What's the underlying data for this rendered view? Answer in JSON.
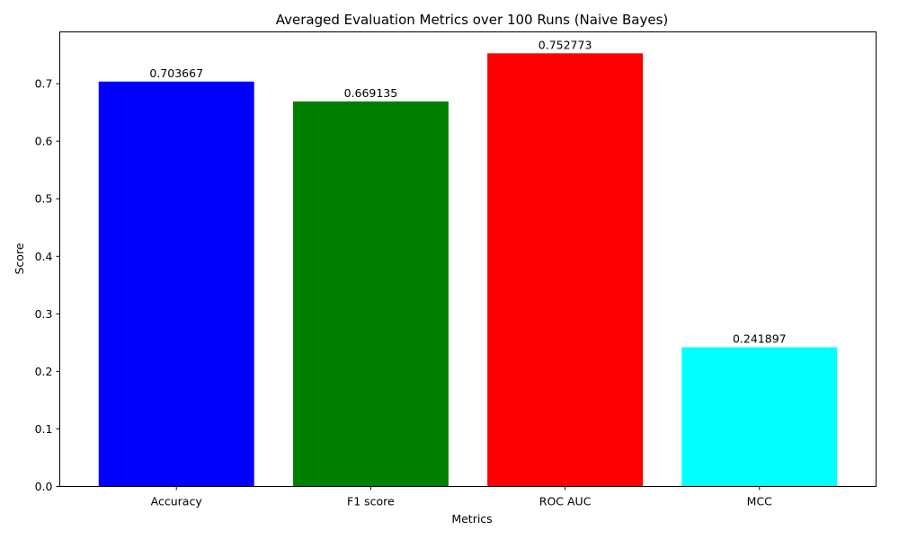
{
  "chart_data": {
    "type": "bar",
    "title": "Averaged Evaluation Metrics over 100 Runs (Naive Bayes)",
    "xlabel": "Metrics",
    "ylabel": "Score",
    "categories": [
      "Accuracy",
      "F1 score",
      "ROC AUC",
      "MCC"
    ],
    "values": [
      0.703667,
      0.669135,
      0.752773,
      0.241897
    ],
    "value_labels": [
      "0.703667",
      "0.669135",
      "0.752773",
      "0.241897"
    ],
    "colors": [
      "#0000ff",
      "#008000",
      "#ff0000",
      "#00ffff"
    ],
    "ylim": [
      0,
      0.79
    ],
    "yticks": [
      0.0,
      0.1,
      0.2,
      0.3,
      0.4,
      0.5,
      0.6,
      0.7
    ],
    "ytick_labels": [
      "0.0",
      "0.1",
      "0.2",
      "0.3",
      "0.4",
      "0.5",
      "0.6",
      "0.7"
    ],
    "grid": false,
    "legend": false
  }
}
